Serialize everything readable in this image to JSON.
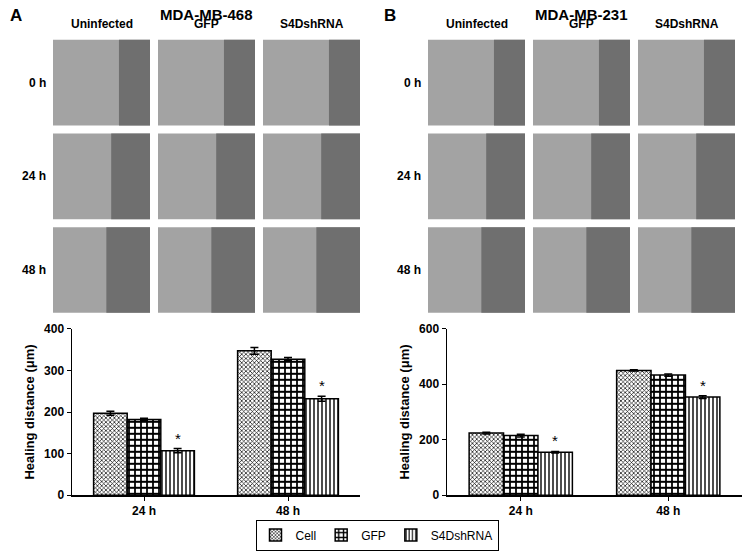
{
  "image_grids": [
    {
      "panel": "A",
      "title": "MDA-MB-468",
      "columns": [
        "Uninfected",
        "GFP",
        "S4DshRNA"
      ],
      "rows": [
        "0 h",
        "24 h",
        "48 h"
      ]
    },
    {
      "panel": "B",
      "title": "MDA-MB-231",
      "columns": [
        "Uninfected",
        "GFP",
        "S4DshRNA"
      ],
      "rows": [
        "0 h",
        "24 h",
        "48 h"
      ]
    }
  ],
  "chart_data": [
    {
      "type": "bar",
      "categories": [
        "24 h",
        "48 h"
      ],
      "y_label": "Healing distance (μm)",
      "ylim": [
        0,
        400
      ],
      "yticks": [
        0,
        100,
        200,
        300,
        400
      ],
      "grid": false,
      "legend": "bottom",
      "series": [
        {
          "name": "Cell",
          "color": "#000000",
          "values": [
            197,
            347
          ],
          "errors": [
            5,
            8
          ]
        },
        {
          "name": "GFP",
          "color": "#000000",
          "values": [
            182,
            327
          ],
          "errors": [
            3,
            4
          ]
        },
        {
          "name": "S4DshRNA",
          "color": "#000000",
          "values": [
            107,
            232
          ],
          "errors": [
            5,
            6
          ]
        }
      ],
      "annotations": [
        {
          "category": "24 h",
          "series": "S4DshRNA",
          "text": "*"
        },
        {
          "category": "48 h",
          "series": "S4DshRNA",
          "text": "*"
        }
      ]
    },
    {
      "type": "bar",
      "categories": [
        "24 h",
        "48 h"
      ],
      "y_label": "Healing distance (μm)",
      "ylim": [
        0,
        600
      ],
      "yticks": [
        0,
        200,
        400,
        600
      ],
      "grid": false,
      "series": [
        {
          "name": "Cell",
          "color": "#000000",
          "values": [
            224,
            450
          ],
          "errors": [
            3,
            2
          ]
        },
        {
          "name": "GFP",
          "color": "#000000",
          "values": [
            215,
            433
          ],
          "errors": [
            5,
            4
          ]
        },
        {
          "name": "S4DshRNA",
          "color": "#000000",
          "values": [
            155,
            354
          ],
          "errors": [
            3,
            5
          ]
        }
      ],
      "annotations": [
        {
          "category": "24 h",
          "series": "S4DshRNA",
          "text": "*"
        },
        {
          "category": "48 h",
          "series": "S4DshRNA",
          "text": "*"
        }
      ]
    }
  ]
}
